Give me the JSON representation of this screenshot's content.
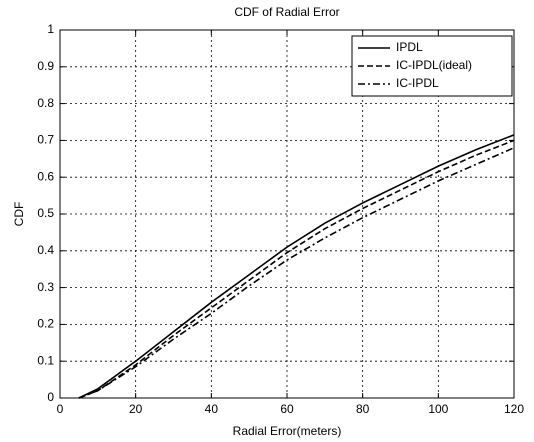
{
  "chart_data": {
    "type": "line",
    "title": "CDF of Radial Error",
    "xlabel": "Radial Error(meters)",
    "ylabel": "CDF",
    "x": [
      5,
      10,
      20,
      30,
      40,
      50,
      60,
      70,
      80,
      90,
      100,
      110,
      120
    ],
    "series": [
      {
        "name": "IPDL",
        "color": "#000000",
        "dash": "solid",
        "values": [
          0,
          0.025,
          0.1,
          0.18,
          0.26,
          0.335,
          0.41,
          0.475,
          0.53,
          0.58,
          0.63,
          0.675,
          0.715
        ]
      },
      {
        "name": "IC-IPDL(ideal)",
        "color": "#000000",
        "dash": "dashed",
        "values": [
          0,
          0.02,
          0.09,
          0.17,
          0.245,
          0.32,
          0.395,
          0.46,
          0.515,
          0.565,
          0.615,
          0.66,
          0.7
        ]
      },
      {
        "name": "IC-IPDL",
        "color": "#000000",
        "dash": "dashdot",
        "values": [
          0,
          0.02,
          0.085,
          0.16,
          0.23,
          0.305,
          0.375,
          0.435,
          0.49,
          0.54,
          0.59,
          0.635,
          0.68
        ]
      }
    ],
    "xlim": [
      0,
      120
    ],
    "xticks": [
      0,
      20,
      40,
      60,
      80,
      100,
      120
    ],
    "ylim": [
      0,
      1
    ],
    "yticks": [
      0,
      0.1,
      0.2,
      0.3,
      0.4,
      0.5,
      0.6,
      0.7,
      0.8,
      0.9,
      1
    ],
    "grid": true,
    "legend": "upper right"
  }
}
